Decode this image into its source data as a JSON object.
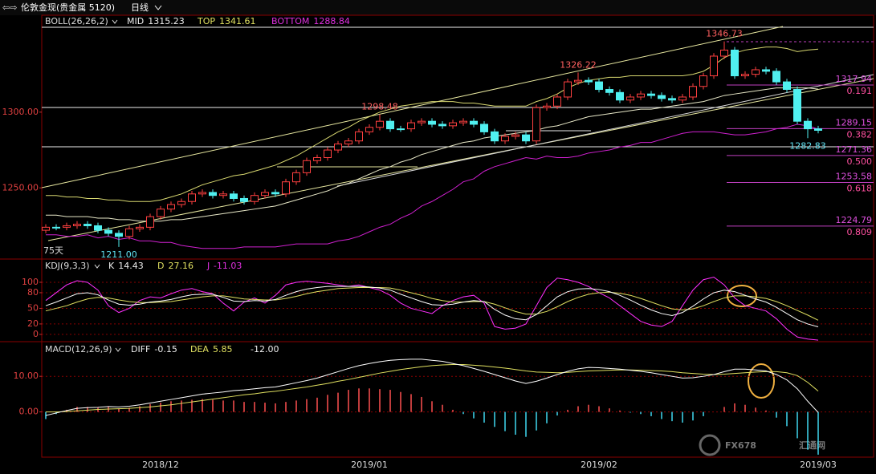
{
  "header": {
    "symbol": "伦敦金现(贵金属 5120)",
    "period": "日线"
  },
  "chart_data": {
    "type": "candlestick",
    "indicator": "BOLL(26,26,2)",
    "period_label": "75天",
    "categories": [
      null,
      null,
      null,
      null,
      null,
      null,
      null,
      null,
      null,
      null,
      null,
      "2018/12",
      null,
      null,
      null,
      null,
      null,
      null,
      null,
      null,
      null,
      null,
      null,
      null,
      null,
      null,
      null,
      null,
      null,
      null,
      null,
      "2019/01",
      null,
      null,
      null,
      null,
      null,
      null,
      null,
      null,
      null,
      null,
      null,
      null,
      null,
      null,
      null,
      null,
      null,
      null,
      null,
      null,
      null,
      "2019/02",
      null,
      null,
      null,
      null,
      null,
      null,
      null,
      null,
      null,
      null,
      null,
      null,
      null,
      null,
      null,
      null,
      null,
      null,
      null,
      null,
      "2019/03"
    ],
    "open": [
      1222,
      1224,
      1224,
      1225,
      1226,
      1225,
      1222,
      1220,
      1218,
      1223,
      1224,
      1231,
      1236,
      1239,
      1241,
      1246,
      1247,
      1245,
      1246,
      1243,
      1241,
      1245,
      1247,
      1246,
      1254,
      1260,
      1268,
      1270,
      1275,
      1279,
      1281,
      1287,
      1290,
      1294,
      1289,
      1289,
      1293,
      1294,
      1292,
      1291,
      1293,
      1294,
      1292,
      1287,
      1281,
      1284,
      1285,
      1281,
      1303,
      1304,
      1310,
      1320,
      1321,
      1320,
      1315,
      1313,
      1308,
      1310,
      1312,
      1311,
      1309,
      1308,
      1310,
      1317,
      1324,
      1337,
      1341,
      1324,
      1325,
      1328,
      1327,
      1320,
      1315,
      1294,
      1289
    ],
    "high": [
      1226,
      1226,
      1227,
      1228,
      1228,
      1227,
      1224,
      1222,
      1225,
      1226,
      1233,
      1238,
      1241,
      1243,
      1248,
      1249,
      1249,
      1248,
      1248,
      1245,
      1247,
      1249,
      1249,
      1256,
      1262,
      1270,
      1272,
      1277,
      1281,
      1283,
      1289,
      1292,
      1298.48,
      1296,
      1291,
      1295,
      1296,
      1296,
      1294,
      1295,
      1296,
      1296,
      1294,
      1289,
      1286,
      1287,
      1287,
      1305,
      1306,
      1312,
      1322,
      1326.22,
      1323,
      1322,
      1317,
      1315,
      1312,
      1314,
      1314,
      1313,
      1311,
      1312,
      1319,
      1326,
      1339,
      1346.73,
      1343,
      1327,
      1330,
      1330,
      1329,
      1322,
      1317,
      1296,
      1291
    ],
    "low": [
      1220,
      1222,
      1222,
      1223,
      1223,
      1220,
      1218,
      1211,
      1216,
      1221,
      1222,
      1229,
      1234,
      1237,
      1239,
      1244,
      1243,
      1243,
      1241,
      1239,
      1239,
      1243,
      1244,
      1244,
      1252,
      1258,
      1266,
      1268,
      1273,
      1277,
      1279,
      1285,
      1288,
      1287,
      1287,
      1287,
      1291,
      1290,
      1289,
      1289,
      1291,
      1290,
      1285,
      1279,
      1279,
      1282,
      1279,
      1279,
      1301,
      1302,
      1308,
      1318,
      1318,
      1313,
      1311,
      1306,
      1306,
      1308,
      1309,
      1307,
      1306,
      1306,
      1308,
      1315,
      1322,
      1335,
      1322,
      1322,
      1323,
      1325,
      1318,
      1313,
      1292,
      1282.83,
      1286
    ],
    "close": [
      1224,
      1224,
      1225,
      1226,
      1225,
      1222,
      1220,
      1218,
      1223,
      1224,
      1231,
      1236,
      1239,
      1241,
      1246,
      1247,
      1245,
      1246,
      1243,
      1241,
      1245,
      1247,
      1246,
      1254,
      1260,
      1268,
      1270,
      1275,
      1279,
      1281,
      1287,
      1290,
      1294,
      1289,
      1289,
      1293,
      1294,
      1292,
      1291,
      1293,
      1294,
      1292,
      1287,
      1281,
      1284,
      1285,
      1281,
      1303,
      1304,
      1310,
      1320,
      1321,
      1320,
      1315,
      1313,
      1308,
      1310,
      1312,
      1311,
      1309,
      1308,
      1310,
      1317,
      1324,
      1337,
      1341,
      1324,
      1325,
      1328,
      1327,
      1320,
      1315,
      1294,
      1289,
      1288
    ],
    "high_labels": [
      null,
      null,
      null,
      null,
      null,
      null,
      null,
      null,
      null,
      null,
      null,
      null,
      null,
      null,
      null,
      null,
      null,
      null,
      null,
      null,
      null,
      null,
      null,
      null,
      null,
      null,
      null,
      null,
      null,
      null,
      null,
      null,
      "1298.48",
      null,
      null,
      null,
      null,
      null,
      null,
      null,
      null,
      null,
      null,
      null,
      null,
      null,
      null,
      null,
      null,
      null,
      null,
      "1326.22",
      null,
      null,
      null,
      null,
      null,
      null,
      null,
      null,
      null,
      null,
      null,
      null,
      null,
      "1346.73",
      null,
      null,
      null,
      null,
      null,
      null,
      null,
      null,
      null
    ],
    "low_labels": [
      null,
      null,
      null,
      null,
      null,
      null,
      null,
      "1211.00",
      null,
      null,
      null,
      null,
      null,
      null,
      null,
      null,
      null,
      null,
      null,
      null,
      null,
      null,
      null,
      null,
      null,
      null,
      null,
      null,
      null,
      null,
      null,
      null,
      null,
      null,
      null,
      null,
      null,
      null,
      null,
      null,
      null,
      null,
      null,
      null,
      null,
      null,
      null,
      null,
      null,
      null,
      null,
      null,
      null,
      null,
      null,
      null,
      null,
      null,
      null,
      null,
      null,
      null,
      null,
      null,
      null,
      null,
      null,
      null,
      null,
      null,
      null,
      null,
      null,
      "1282.83",
      null
    ],
    "boll": {
      "mid_name": "MID",
      "top_name": "TOP",
      "bottom_name": "BOTTOM",
      "top": [
        1245,
        1245,
        1244,
        1244,
        1243,
        1243,
        1242,
        1242,
        1241,
        1241,
        1241,
        1242,
        1244,
        1246,
        1249,
        1252,
        1254,
        1256,
        1258,
        1259,
        1261,
        1263,
        1265,
        1268,
        1271,
        1275,
        1279,
        1283,
        1287,
        1290,
        1294,
        1297,
        1300,
        1302,
        1304,
        1305,
        1306,
        1307,
        1307,
        1307,
        1306,
        1306,
        1305,
        1304,
        1304,
        1304,
        1304,
        1307,
        1309,
        1312,
        1316,
        1319,
        1321,
        1322,
        1323,
        1323,
        1324,
        1324,
        1324,
        1324,
        1324,
        1324,
        1325,
        1327,
        1331,
        1336,
        1339,
        1341,
        1342,
        1343,
        1343,
        1342,
        1340,
        1341,
        1341.61
      ],
      "mid": [
        1232,
        1232,
        1231,
        1231,
        1231,
        1230,
        1230,
        1229,
        1229,
        1228,
        1228,
        1228,
        1229,
        1229,
        1230,
        1231,
        1232,
        1233,
        1234,
        1235,
        1236,
        1237,
        1238,
        1240,
        1242,
        1244,
        1246,
        1248,
        1251,
        1253,
        1256,
        1259,
        1262,
        1264,
        1267,
        1269,
        1272,
        1274,
        1276,
        1278,
        1280,
        1281,
        1283,
        1284,
        1285,
        1286,
        1287,
        1288,
        1290,
        1291,
        1293,
        1295,
        1297,
        1298,
        1299,
        1300,
        1301,
        1302,
        1302,
        1303,
        1304,
        1305,
        1306,
        1307,
        1309,
        1311,
        1312,
        1313,
        1314,
        1315,
        1316,
        1316,
        1316,
        1316,
        1315.23
      ],
      "bottom": [
        1219,
        1219,
        1218,
        1218,
        1219,
        1217,
        1218,
        1216,
        1217,
        1215,
        1215,
        1214,
        1214,
        1212,
        1211,
        1210,
        1210,
        1210,
        1210,
        1211,
        1211,
        1211,
        1211,
        1212,
        1213,
        1213,
        1213,
        1213,
        1215,
        1216,
        1218,
        1221,
        1224,
        1226,
        1230,
        1233,
        1238,
        1241,
        1245,
        1249,
        1254,
        1256,
        1261,
        1264,
        1266,
        1268,
        1270,
        1269,
        1271,
        1270,
        1270,
        1271,
        1273,
        1274,
        1275,
        1277,
        1278,
        1280,
        1280,
        1282,
        1284,
        1286,
        1287,
        1287,
        1287,
        1286,
        1285,
        1285,
        1286,
        1287,
        1289,
        1290,
        1292,
        1291,
        1288.84
      ]
    },
    "ylim": [
      1203,
      1364
    ],
    "yticks": [
      {
        "value": 1250,
        "label": "1250.00"
      },
      {
        "value": 1300,
        "label": "1300.00"
      }
    ],
    "fib_levels": [
      {
        "price": 1317.94,
        "ratio": "0.191"
      },
      {
        "price": 1289.15,
        "ratio": "0.382"
      },
      {
        "price": 1271.36,
        "ratio": "0.500"
      },
      {
        "price": 1253.58,
        "ratio": "0.618"
      },
      {
        "price": 1224.79,
        "ratio": "0.809"
      }
    ],
    "kdj": {
      "title": "KDJ(9,3,3)",
      "k_name": "K",
      "d_name": "D",
      "j_name": "J",
      "k": [
        55,
        62,
        70,
        78,
        80,
        76,
        66,
        58,
        56,
        58,
        62,
        64,
        67,
        72,
        76,
        77,
        77,
        71,
        64,
        63,
        65,
        64,
        67,
        75,
        82,
        87,
        90,
        92,
        92,
        92,
        92,
        91,
        89,
        85,
        77,
        70,
        63,
        57,
        56,
        58,
        62,
        65,
        63,
        48,
        37,
        30,
        28,
        38,
        55,
        72,
        82,
        87,
        88,
        86,
        82,
        75,
        66,
        56,
        47,
        40,
        36,
        42,
        54,
        68,
        80,
        85,
        82,
        75,
        68,
        62,
        52,
        40,
        28,
        20,
        14.43
      ],
      "d": [
        45,
        50,
        55,
        62,
        68,
        71,
        70,
        66,
        63,
        61,
        61,
        62,
        63,
        66,
        69,
        72,
        74,
        74,
        71,
        68,
        67,
        66,
        66,
        69,
        73,
        78,
        82,
        85,
        88,
        89,
        90,
        90,
        90,
        89,
        85,
        80,
        75,
        69,
        65,
        62,
        62,
        63,
        63,
        58,
        51,
        44,
        39,
        39,
        44,
        53,
        63,
        71,
        77,
        80,
        81,
        79,
        75,
        69,
        62,
        55,
        49,
        47,
        49,
        55,
        63,
        70,
        74,
        74,
        72,
        69,
        63,
        55,
        46,
        37,
        27.16
      ],
      "j": [
        65,
        80,
        95,
        103,
        100,
        85,
        55,
        42,
        50,
        65,
        72,
        70,
        78,
        85,
        88,
        82,
        78,
        60,
        45,
        62,
        70,
        60,
        75,
        95,
        100,
        102,
        100,
        98,
        95,
        92,
        95,
        90,
        85,
        75,
        60,
        50,
        45,
        40,
        55,
        65,
        72,
        75,
        60,
        15,
        10,
        12,
        20,
        55,
        90,
        108,
        105,
        100,
        92,
        80,
        70,
        55,
        40,
        25,
        18,
        15,
        25,
        55,
        85,
        105,
        110,
        95,
        70,
        55,
        50,
        45,
        30,
        10,
        -5,
        -9,
        -11.03
      ],
      "ylim": [
        -14,
        140
      ],
      "yticks": [
        0,
        20,
        50,
        80,
        100
      ]
    },
    "macd": {
      "title": "MACD(12,26,9)",
      "diff_name": "DIFF",
      "dea_name": "DEA",
      "hist_last_label": "-12.00",
      "diff": [
        -1,
        -0.3,
        0.4,
        1,
        1.2,
        1.3,
        1.5,
        1.4,
        1.6,
        2,
        2.5,
        3,
        3.5,
        4,
        4.5,
        5,
        5.3,
        5.6,
        6,
        6.2,
        6.5,
        6.8,
        7,
        7.6,
        8.2,
        8.8,
        9.5,
        10.4,
        11.3,
        12.2,
        13,
        13.6,
        14.1,
        14.5,
        14.7,
        14.8,
        14.8,
        14.5,
        14.2,
        13.6,
        13,
        12.2,
        11.4,
        10.5,
        9.6,
        8.7,
        8,
        8.6,
        9.5,
        10.5,
        11.4,
        12.1,
        12.5,
        12.4,
        12.2,
        12,
        11.7,
        11.4,
        11,
        10.5,
        10,
        9.5,
        9.6,
        10,
        10.5,
        11.3,
        12,
        12,
        11.8,
        11.5,
        10.5,
        9,
        6.5,
        3,
        -0.15
      ],
      "dea": [
        0,
        0,
        0.1,
        0.3,
        0.5,
        0.7,
        0.8,
        0.9,
        1,
        1.2,
        1.4,
        1.7,
        2,
        2.4,
        2.8,
        3.2,
        3.6,
        4,
        4.4,
        4.8,
        5.1,
        5.5,
        5.8,
        6.2,
        6.6,
        7,
        7.5,
        8,
        8.6,
        9.1,
        9.7,
        10.3,
        10.9,
        11.4,
        11.9,
        12.3,
        12.7,
        13,
        13.2,
        13.3,
        13.3,
        13.1,
        12.9,
        12.6,
        12.3,
        11.9,
        11.5,
        11.2,
        11.1,
        11,
        11.1,
        11.3,
        11.5,
        11.6,
        11.7,
        11.8,
        11.8,
        11.7,
        11.6,
        11.5,
        11.3,
        11,
        10.8,
        10.6,
        10.5,
        10.6,
        10.8,
        11,
        11.2,
        11.3,
        11.3,
        11,
        10.2,
        8.3,
        5.85
      ],
      "hist": [
        -2,
        -0.6,
        0.6,
        1.4,
        1.4,
        1.2,
        1.4,
        1,
        1.2,
        1.6,
        2.2,
        2.6,
        3,
        3.2,
        3.4,
        3.6,
        3.4,
        3.2,
        3.2,
        2.8,
        2.8,
        2.6,
        2.4,
        2.8,
        3.2,
        3.6,
        4,
        4.8,
        5.4,
        6.2,
        6.6,
        6.6,
        6.4,
        6.2,
        5.6,
        5,
        4.2,
        3,
        2,
        0.6,
        -0.6,
        -1.8,
        -3,
        -4.2,
        -5.4,
        -6.4,
        -7,
        -5.2,
        -3.2,
        -1,
        0.6,
        1.6,
        2,
        1.6,
        1,
        0.4,
        -0.2,
        -0.6,
        -1.2,
        -2,
        -2.6,
        -3,
        -2.4,
        -1.2,
        0,
        1.4,
        2.4,
        2,
        1.2,
        0.4,
        -1.6,
        -4,
        -7.4,
        -10.6,
        -12
      ],
      "ylim": [
        -12.7,
        19.5
      ],
      "yticks": [
        {
          "value": 0,
          "label": "0.00"
        },
        {
          "value": 10,
          "label": "10.00"
        }
      ]
    }
  },
  "watermark": {
    "brand": "FX678",
    "name": "汇通网"
  }
}
